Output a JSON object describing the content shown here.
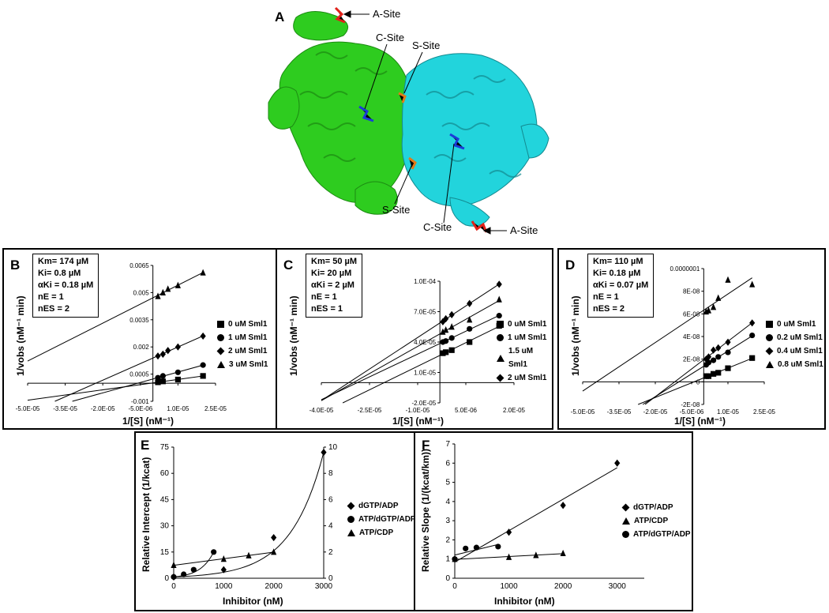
{
  "panelA": {
    "label": "A",
    "annotations": [
      "A-Site",
      "C-Site",
      "S-Site",
      "S-Site",
      "C-Site",
      "A-Site"
    ],
    "colors": {
      "chain1": "#2ecc1f",
      "chain2": "#22d4dc",
      "site_a": "#e0221a",
      "site_c": "#1a3cd8",
      "site_s": "#e07a1a"
    }
  },
  "chart_data": [
    {
      "panel": "B",
      "type": "scatter",
      "params": [
        "Km= 174 µM",
        "Ki= 0.8 µM",
        "αKi = 0.18 µM",
        "nE = 1",
        "nES = 2"
      ],
      "xlabel": "1/[S] (nM⁻¹)",
      "ylabel": "1/vobs (nM⁻¹ min)",
      "xlim": [
        -5e-05,
        2.5e-05
      ],
      "ylim": [
        -0.001,
        0.0065
      ],
      "xticks": [
        "-5.0E-05",
        "-3.5E-05",
        "-2.0E-05",
        "-5.0E-06",
        "1.0E-05",
        "2.5E-05"
      ],
      "yticks": [
        "-0.001",
        "0.0005",
        "0.002",
        "0.0035",
        "0.005",
        "0.0065"
      ],
      "series": [
        {
          "name": "0 uM Sml1",
          "marker": "square",
          "x": [
            2e-06,
            4e-06,
            1e-05,
            2e-05
          ],
          "y": [
            5e-05,
            0.0001,
            0.0002,
            0.0004
          ]
        },
        {
          "name": "1 uM Sml1",
          "marker": "circle",
          "x": [
            2e-06,
            4e-06,
            1e-05,
            2e-05
          ],
          "y": [
            0.0003,
            0.0004,
            0.0006,
            0.001
          ]
        },
        {
          "name": "2 uM Sml1",
          "marker": "diamond",
          "x": [
            2e-06,
            4e-06,
            6e-06,
            1e-05,
            2e-05
          ],
          "y": [
            0.0015,
            0.0016,
            0.0018,
            0.002,
            0.0026
          ]
        },
        {
          "name": "3 uM Sml1",
          "marker": "triangle",
          "x": [
            2e-06,
            4e-06,
            6e-06,
            1e-05,
            2e-05
          ],
          "y": [
            0.0048,
            0.005,
            0.0052,
            0.0054,
            0.0061
          ]
        }
      ]
    },
    {
      "panel": "C",
      "type": "scatter",
      "params": [
        "Km= 50 µM",
        "Ki= 20 µM",
        "αKi = 2 µM",
        "nE = 1",
        "nES = 1"
      ],
      "xlabel": "1/[S] (nM⁻¹)",
      "ylabel": "1/vobs (nM⁻¹ min)",
      "xlim": [
        -4e-05,
        2.5e-05
      ],
      "ylim": [
        -2e-05,
        0.0001
      ],
      "xticks": [
        "-4.0E-05",
        "-2.5E-05",
        "-1.0E-05",
        "5.0E-06",
        "2.0E-05"
      ],
      "yticks": [
        "-2.0E-05",
        "1.0E-05",
        "4.0E-05",
        "7.0E-05",
        "1.0E-04"
      ],
      "series": [
        {
          "name": "0 uM Sml1",
          "marker": "square",
          "x": [
            1e-06,
            2e-06,
            4e-06,
            1e-05,
            2e-05
          ],
          "y": [
            2.9e-05,
            3e-05,
            3.2e-05,
            4e-05,
            5.6e-05
          ]
        },
        {
          "name": "1 uM Sml1",
          "marker": "circle",
          "x": [
            1e-06,
            2e-06,
            4e-06,
            1e-05,
            2e-05
          ],
          "y": [
            4e-05,
            4.1e-05,
            4.4e-05,
            5.3e-05,
            6.6e-05
          ]
        },
        {
          "name": "1.5 uM Sml1",
          "marker": "triangle",
          "x": [
            1e-06,
            2e-06,
            4e-06,
            1e-05,
            2e-05
          ],
          "y": [
            5e-05,
            5.2e-05,
            5.5e-05,
            6.2e-05,
            8.2e-05
          ]
        },
        {
          "name": "2 uM Sml1",
          "marker": "diamond",
          "x": [
            1e-06,
            2e-06,
            4e-06,
            1e-05,
            2e-05
          ],
          "y": [
            6e-05,
            6.3e-05,
            6.7e-05,
            7.8e-05,
            9.7e-05
          ]
        }
      ]
    },
    {
      "panel": "D",
      "type": "scatter",
      "params": [
        "Km= 110 µM",
        "Ki= 0.18 µM",
        "αKi = 0.07 µM",
        "nE = 1",
        "nES = 2"
      ],
      "xlabel": "1/[S] (nM⁻¹)",
      "ylabel": "1/vobs (nM⁻¹ min)",
      "xlim": [
        -5e-05,
        2.5e-05
      ],
      "ylim": [
        -2e-08,
        1e-07
      ],
      "xticks": [
        "-5.0E-05",
        "-3.5E-05",
        "-2.0E-05",
        "-5.0E-06",
        "1.0E-05",
        "2.5E-05"
      ],
      "yticks": [
        "-2E-08",
        "0",
        "2E-08",
        "4E-08",
        "6E-08",
        "8E-08",
        "0.0000001"
      ],
      "series": [
        {
          "name": "0 uM Sml1",
          "marker": "square",
          "x": [
            1e-06,
            2e-06,
            4e-06,
            6e-06,
            1e-05,
            2e-05
          ],
          "y": [
            5e-09,
            5e-09,
            7e-09,
            8e-09,
            1.2e-08,
            2.1e-08
          ]
        },
        {
          "name": "0.2 uM Sml1",
          "marker": "circle",
          "x": [
            1e-06,
            2e-06,
            4e-06,
            6e-06,
            1e-05,
            2e-05
          ],
          "y": [
            1.5e-08,
            1.7e-08,
            1.9e-08,
            2.2e-08,
            2.6e-08,
            4.1e-08
          ]
        },
        {
          "name": "0.4 uM Sml1",
          "marker": "diamond",
          "x": [
            1e-06,
            2e-06,
            4e-06,
            6e-06,
            1e-05,
            2e-05
          ],
          "y": [
            2e-08,
            2.2e-08,
            2.8e-08,
            3e-08,
            3.5e-08,
            5.2e-08
          ]
        },
        {
          "name": "0.8 uM Sml1",
          "marker": "triangle",
          "x": [
            1e-06,
            2e-06,
            4e-06,
            6e-06,
            1e-05,
            2e-05
          ],
          "y": [
            6.2e-08,
            6.3e-08,
            6.6e-08,
            7.4e-08,
            9e-08,
            8.6e-08
          ]
        }
      ]
    },
    {
      "panel": "E",
      "type": "scatter",
      "xlabel": "Inhibitor (nM)",
      "ylabel": "Relative Intercept (1/kcat)",
      "xlim": [
        0,
        3000
      ],
      "ylim": [
        0,
        75
      ],
      "y2lim": [
        0,
        10
      ],
      "xticks": [
        "0",
        "1000",
        "2000",
        "3000"
      ],
      "yticks": [
        "0",
        "15",
        "30",
        "45",
        "60",
        "75"
      ],
      "y2ticks": [
        "0",
        "2",
        "4",
        "6",
        "8",
        "10"
      ],
      "series": [
        {
          "name": "dGTP/ADP",
          "marker": "diamond",
          "axis": "right",
          "x": [
            0,
            1000,
            2000,
            3000
          ],
          "y": [
            0.1,
            0.65,
            3.1,
            9.6
          ]
        },
        {
          "name": "ATP/dGTP/ADP",
          "marker": "circle",
          "axis": "right",
          "x": [
            0,
            200,
            400,
            800
          ],
          "y": [
            0.1,
            0.3,
            0.65,
            2.0
          ]
        },
        {
          "name": "ATP/CDP",
          "marker": "triangle",
          "axis": "left",
          "x": [
            0,
            1000,
            1500,
            2000
          ],
          "y": [
            7.5,
            11,
            13,
            15
          ]
        }
      ]
    },
    {
      "panel": "F",
      "type": "scatter",
      "xlabel": "Inhibitor (nM)",
      "ylabel": "Relative Slope (1/(kcat/km))",
      "xlim": [
        0,
        3500
      ],
      "ylim": [
        0,
        7
      ],
      "xticks": [
        "0",
        "1000",
        "2000",
        "3000"
      ],
      "yticks": [
        "0",
        "1",
        "2",
        "3",
        "4",
        "5",
        "6",
        "7"
      ],
      "series": [
        {
          "name": "dGTP/ADP",
          "marker": "diamond",
          "x": [
            0,
            1000,
            2000,
            3000
          ],
          "y": [
            1.0,
            2.4,
            3.8,
            6.0
          ]
        },
        {
          "name": "ATP/CDP",
          "marker": "triangle",
          "x": [
            0,
            1000,
            1500,
            2000
          ],
          "y": [
            1.0,
            1.1,
            1.2,
            1.3
          ]
        },
        {
          "name": "ATP/dGTP/ADP",
          "marker": "circle",
          "x": [
            0,
            200,
            400,
            800
          ],
          "y": [
            1.0,
            1.55,
            1.6,
            1.65
          ]
        }
      ]
    }
  ]
}
